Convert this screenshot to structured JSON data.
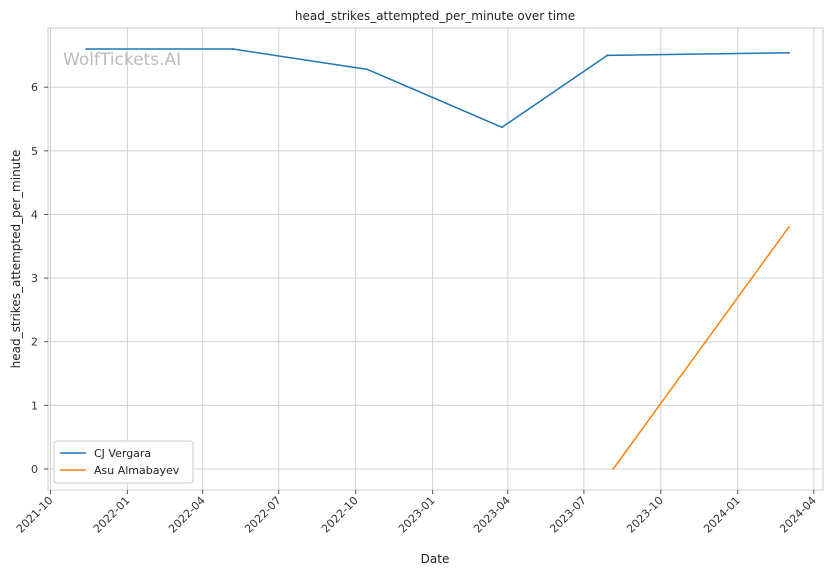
{
  "chart_data": {
    "type": "line",
    "title": "head_strikes_attempted_per_minute over time",
    "xlabel": "Date",
    "ylabel": "head_strikes_attempted_per_minute",
    "watermark": "WolfTickets.AI",
    "x_axis_type": "date",
    "xlim": [
      "2021-09-28",
      "2024-04-12"
    ],
    "ylim": [
      -0.33,
      6.93
    ],
    "x_ticks": [
      "2021-10-01",
      "2022-01-01",
      "2022-04-01",
      "2022-07-01",
      "2022-10-01",
      "2023-01-01",
      "2023-04-01",
      "2023-07-01",
      "2023-10-01",
      "2024-01-01",
      "2024-04-01"
    ],
    "x_tick_labels": [
      "2021-10",
      "2022-01",
      "2022-04",
      "2022-07",
      "2022-10",
      "2023-01",
      "2023-04",
      "2023-07",
      "2023-10",
      "2024-01",
      "2024-04"
    ],
    "y_ticks": [
      0,
      1,
      2,
      3,
      4,
      5,
      6
    ],
    "y_tick_labels": [
      "0",
      "1",
      "2",
      "3",
      "4",
      "5",
      "6"
    ],
    "grid": true,
    "legend_position": "lower-left",
    "series": [
      {
        "name": "CJ Vergara",
        "color": "#1f77b4",
        "x": [
          "2021-11-13",
          "2022-05-07",
          "2022-10-15",
          "2023-03-25",
          "2023-07-29",
          "2024-03-02"
        ],
        "y": [
          6.6,
          6.6,
          6.28,
          5.37,
          6.5,
          6.54
        ]
      },
      {
        "name": "Asu Almabayev",
        "color": "#ff7f0e",
        "x": [
          "2023-08-05",
          "2024-03-02"
        ],
        "y": [
          0.0,
          3.8
        ]
      }
    ]
  }
}
